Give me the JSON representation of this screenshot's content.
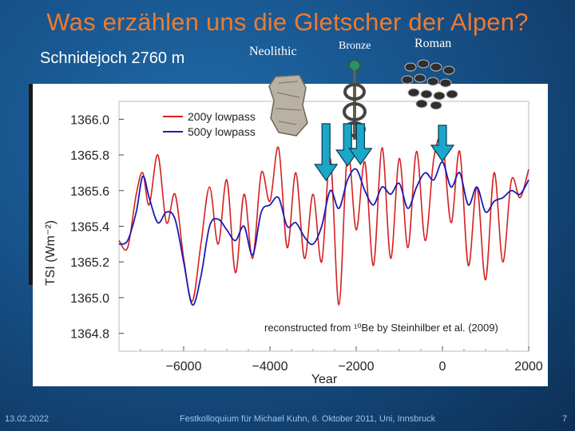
{
  "slide": {
    "title": "Was erzählen uns die Gletscher der Alpen?",
    "subtitle": "Schnidejoch 2760 m"
  },
  "periods": {
    "neolithic": "Neolithic",
    "bronze": "Bronze",
    "roman": "Roman"
  },
  "footer": {
    "date": "13.02.2022",
    "event": "Festkolloquium für Michael Kuhn, 6. Oktober 2011, Uni, Innsbruck",
    "page": "7"
  },
  "colors": {
    "title": "#f07a2c",
    "series_200y": "#d62020",
    "series_500y": "#1c1cb4",
    "arrow": "#1aa7c8"
  },
  "chart_data": {
    "type": "line",
    "xlabel": "Year",
    "ylabel": "TSI (Wm⁻²)",
    "xlim": [
      -7500,
      2000
    ],
    "ylim": [
      1364.7,
      1366.1
    ],
    "x_ticks": [
      -6000,
      -4000,
      -2000,
      0,
      2000
    ],
    "x_tick_labels": [
      "−6000",
      "−4000",
      "−2000",
      "0",
      "2000"
    ],
    "y_ticks": [
      1364.8,
      1365.0,
      1365.2,
      1365.4,
      1365.6,
      1365.8,
      1366.0
    ],
    "y_tick_labels": [
      "1364.8",
      "1365.0",
      "1365.2",
      "1365.4",
      "1365.6",
      "1365.8",
      "1366.0"
    ],
    "legend_position": "top-left",
    "grid": false,
    "annotation": "reconstructed from ¹⁰Be by Steinhilber et al. (2009)",
    "arrows_at_year": [
      -2700,
      -2200,
      -1900,
      0
    ],
    "series": [
      {
        "name": "200y lowpass",
        "color": "#d62020",
        "x": [
          -7500,
          -7300,
          -7100,
          -6950,
          -6800,
          -6600,
          -6400,
          -6200,
          -6000,
          -5800,
          -5600,
          -5400,
          -5200,
          -5000,
          -4800,
          -4600,
          -4400,
          -4200,
          -4000,
          -3800,
          -3600,
          -3400,
          -3200,
          -3000,
          -2800,
          -2600,
          -2400,
          -2200,
          -2000,
          -1800,
          -1600,
          -1400,
          -1200,
          -1000,
          -800,
          -600,
          -400,
          -200,
          0,
          200,
          400,
          600,
          800,
          1000,
          1200,
          1400,
          1600,
          1800,
          2000
        ],
        "values": [
          1365.32,
          1365.28,
          1365.58,
          1365.7,
          1365.52,
          1365.8,
          1365.42,
          1365.58,
          1365.22,
          1364.98,
          1365.3,
          1365.62,
          1365.3,
          1365.66,
          1365.14,
          1365.58,
          1365.22,
          1365.7,
          1365.54,
          1365.84,
          1365.28,
          1365.7,
          1365.22,
          1365.58,
          1365.2,
          1365.78,
          1364.96,
          1365.82,
          1365.38,
          1365.76,
          1365.18,
          1365.84,
          1365.22,
          1365.78,
          1365.28,
          1365.82,
          1365.32,
          1365.78,
          1365.88,
          1365.42,
          1365.82,
          1365.18,
          1365.62,
          1365.1,
          1365.7,
          1365.2,
          1365.66,
          1365.56,
          1365.72
        ]
      },
      {
        "name": "500y lowpass",
        "color": "#1c1cb4",
        "x": [
          -7500,
          -7300,
          -7100,
          -6950,
          -6800,
          -6600,
          -6400,
          -6200,
          -6000,
          -5800,
          -5600,
          -5400,
          -5200,
          -5000,
          -4800,
          -4600,
          -4400,
          -4200,
          -4000,
          -3800,
          -3600,
          -3400,
          -3200,
          -3000,
          -2800,
          -2600,
          -2400,
          -2200,
          -2000,
          -1800,
          -1600,
          -1400,
          -1200,
          -1000,
          -800,
          -600,
          -400,
          -200,
          0,
          200,
          400,
          600,
          800,
          1000,
          1200,
          1400,
          1600,
          1800,
          2000
        ],
        "values": [
          1365.3,
          1365.32,
          1365.48,
          1365.68,
          1365.56,
          1365.42,
          1365.48,
          1365.44,
          1365.2,
          1364.96,
          1365.12,
          1365.4,
          1365.44,
          1365.38,
          1365.32,
          1365.4,
          1365.24,
          1365.48,
          1365.52,
          1365.56,
          1365.4,
          1365.42,
          1365.34,
          1365.3,
          1365.4,
          1365.6,
          1365.5,
          1365.66,
          1365.72,
          1365.6,
          1365.52,
          1365.62,
          1365.58,
          1365.64,
          1365.5,
          1365.62,
          1365.7,
          1365.66,
          1365.76,
          1365.62,
          1365.7,
          1365.52,
          1365.62,
          1365.48,
          1365.54,
          1365.56,
          1365.6,
          1365.58,
          1365.66
        ]
      }
    ]
  }
}
